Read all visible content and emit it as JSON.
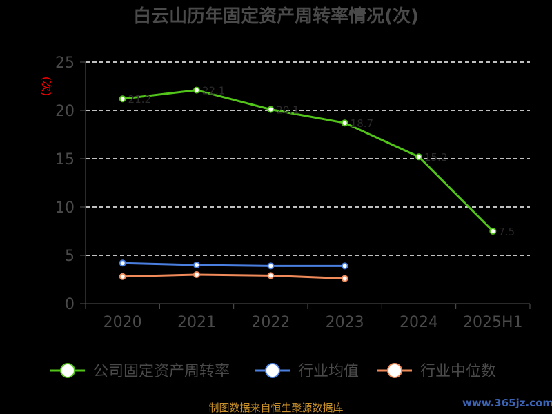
{
  "chart_data": {
    "type": "line",
    "title": "白云山历年固定资产周转率情况(次)",
    "ylabel": "(次)",
    "xlabel": "",
    "categories": [
      "2020",
      "2021",
      "2022",
      "2023",
      "2024",
      "2025H1"
    ],
    "ylim": [
      0,
      25
    ],
    "yticks": [
      0,
      5,
      10,
      15,
      20,
      25
    ],
    "grid": true,
    "legend_position": "bottom",
    "series": [
      {
        "name": "公司固定资产周转率",
        "color": "#52c41a",
        "values": [
          21.2,
          22.1,
          20.1,
          18.7,
          15.2,
          7.5
        ],
        "labels": [
          "21.2",
          "22.1",
          "20.1",
          "18.7",
          "15.2",
          "7.5"
        ]
      },
      {
        "name": "行业均值",
        "color": "#4a7fe0",
        "values": [
          4.2,
          4.0,
          3.9,
          3.9,
          null,
          null
        ]
      },
      {
        "name": "行业中位数",
        "color": "#f08a5a",
        "values": [
          2.8,
          3.0,
          2.9,
          2.6,
          null,
          null
        ]
      }
    ]
  },
  "footer": "制图数据来自恒生聚源数据库",
  "watermark": "www.365jz.com"
}
